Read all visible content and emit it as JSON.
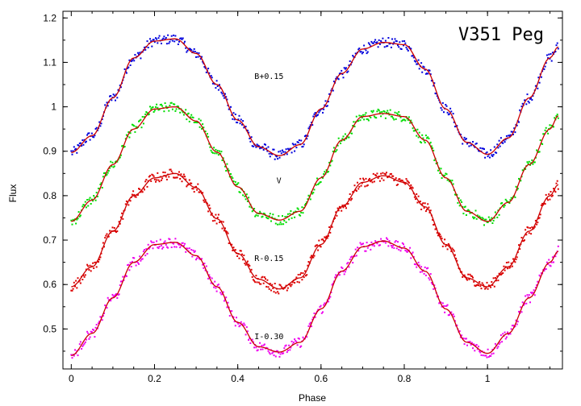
{
  "chart_data": {
    "type": "scatter",
    "title": "V351 Peg",
    "xlabel": "Phase",
    "ylabel": "Flux",
    "xlim": [
      -0.02,
      1.18
    ],
    "ylim": [
      0.41,
      1.215
    ],
    "xticks": [
      0,
      0.2,
      0.4,
      0.6,
      0.8,
      1
    ],
    "xtick_labels": [
      "0",
      "0.2",
      "0.4",
      "0.6",
      "0.8",
      "1"
    ],
    "yticks": [
      0.5,
      0.6,
      0.7,
      0.8,
      0.9,
      1.0,
      1.1,
      1.2
    ],
    "ytick_labels": [
      "0.5",
      "0.6",
      "0.7",
      "0.8",
      "0.9",
      "1",
      "1.1",
      "1.2"
    ],
    "grid": false,
    "fit_color": "#cc0000",
    "series": [
      {
        "name": "B+0.15",
        "color": "#0000dd",
        "label_pos": {
          "x": 0.44,
          "y": 1.063
        },
        "x": [
          0,
          0.05,
          0.1,
          0.15,
          0.2,
          0.25,
          0.3,
          0.35,
          0.4,
          0.45,
          0.5,
          0.55,
          0.6,
          0.65,
          0.7,
          0.75,
          0.8,
          0.85,
          0.9,
          0.95,
          1.0,
          1.05,
          1.1,
          1.15,
          1.17
        ],
        "y": [
          0.897,
          0.935,
          1.02,
          1.11,
          1.148,
          1.153,
          1.12,
          1.05,
          0.97,
          0.91,
          0.89,
          0.915,
          0.995,
          1.075,
          1.13,
          1.145,
          1.14,
          1.085,
          0.995,
          0.92,
          0.893,
          0.93,
          1.02,
          1.11,
          1.135
        ]
      },
      {
        "name": "V",
        "color": "#00dd00",
        "label_pos": {
          "x": 0.493,
          "y": 0.828
        },
        "x": [
          0,
          0.05,
          0.1,
          0.15,
          0.2,
          0.25,
          0.3,
          0.35,
          0.4,
          0.45,
          0.5,
          0.55,
          0.6,
          0.65,
          0.7,
          0.75,
          0.8,
          0.85,
          0.9,
          0.95,
          1.0,
          1.05,
          1.1,
          1.15,
          1.17
        ],
        "y": [
          0.742,
          0.79,
          0.87,
          0.95,
          0.995,
          1.0,
          0.968,
          0.898,
          0.82,
          0.76,
          0.745,
          0.765,
          0.84,
          0.925,
          0.978,
          0.985,
          0.978,
          0.925,
          0.84,
          0.765,
          0.742,
          0.785,
          0.87,
          0.95,
          0.98
        ]
      },
      {
        "name": "R-0.15",
        "color": "#dd0000",
        "label_pos": {
          "x": 0.44,
          "y": 0.653
        },
        "x": [
          0,
          0.05,
          0.1,
          0.15,
          0.2,
          0.25,
          0.3,
          0.35,
          0.4,
          0.45,
          0.5,
          0.55,
          0.6,
          0.65,
          0.7,
          0.75,
          0.8,
          0.85,
          0.9,
          0.95,
          1.0,
          1.05,
          1.1,
          1.15,
          1.17
        ],
        "y": [
          0.595,
          0.64,
          0.72,
          0.8,
          0.84,
          0.85,
          0.818,
          0.748,
          0.67,
          0.612,
          0.59,
          0.615,
          0.69,
          0.775,
          0.83,
          0.845,
          0.83,
          0.775,
          0.69,
          0.615,
          0.595,
          0.64,
          0.72,
          0.8,
          0.825
        ]
      },
      {
        "name": "I-0.30",
        "color": "#ee00ee",
        "label_pos": {
          "x": 0.44,
          "y": 0.477
        },
        "x": [
          0,
          0.05,
          0.1,
          0.15,
          0.2,
          0.25,
          0.3,
          0.35,
          0.4,
          0.45,
          0.5,
          0.55,
          0.6,
          0.65,
          0.7,
          0.75,
          0.8,
          0.85,
          0.9,
          0.95,
          1.0,
          1.05,
          1.1,
          1.15,
          1.17
        ],
        "y": [
          0.44,
          0.49,
          0.57,
          0.65,
          0.69,
          0.695,
          0.665,
          0.595,
          0.515,
          0.46,
          0.448,
          0.47,
          0.545,
          0.63,
          0.685,
          0.698,
          0.682,
          0.63,
          0.545,
          0.47,
          0.445,
          0.49,
          0.57,
          0.65,
          0.675
        ]
      }
    ]
  }
}
